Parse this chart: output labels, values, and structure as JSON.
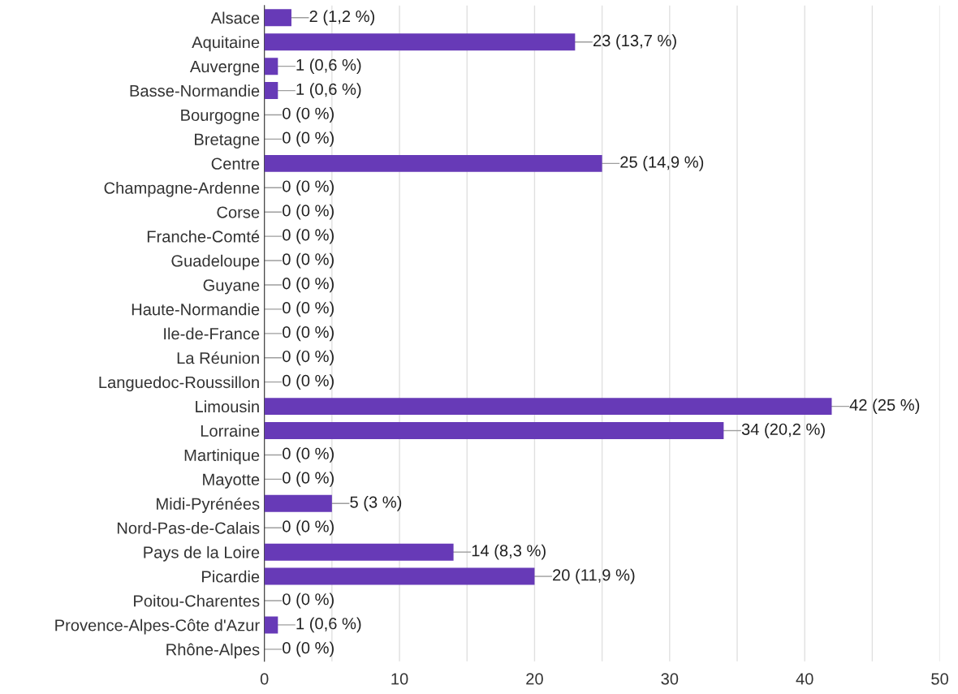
{
  "chart_data": {
    "type": "bar",
    "orientation": "horizontal",
    "categories": [
      "Alsace",
      "Aquitaine",
      "Auvergne",
      "Basse-Normandie",
      "Bourgogne",
      "Bretagne",
      "Centre",
      "Champagne-Ardenne",
      "Corse",
      "Franche-Comté",
      "Guadeloupe",
      "Guyane",
      "Haute-Normandie",
      "Ile-de-France",
      "La Réunion",
      "Languedoc-Roussillon",
      "Limousin",
      "Lorraine",
      "Martinique",
      "Mayotte",
      "Midi-Pyrénées",
      "Nord-Pas-de-Calais",
      "Pays de la Loire",
      "Picardie",
      "Poitou-Charentes",
      "Provence-Alpes-Côte d'Azur",
      "Rhône-Alpes"
    ],
    "values": [
      2,
      23,
      1,
      1,
      0,
      0,
      25,
      0,
      0,
      0,
      0,
      0,
      0,
      0,
      0,
      0,
      42,
      34,
      0,
      0,
      5,
      0,
      14,
      20,
      0,
      1,
      0
    ],
    "value_labels": [
      "2 (1,2 %)",
      "23 (13,7 %)",
      "1 (0,6 %)",
      "1 (0,6 %)",
      "0 (0 %)",
      "0 (0 %)",
      "25 (14,9 %)",
      "0 (0 %)",
      "0 (0 %)",
      "0 (0 %)",
      "0 (0 %)",
      "0 (0 %)",
      "0 (0 %)",
      "0 (0 %)",
      "0 (0 %)",
      "0 (0 %)",
      "42 (25 %)",
      "34 (20,2 %)",
      "0 (0 %)",
      "0 (0 %)",
      "5 (3 %)",
      "0 (0 %)",
      "14 (8,3 %)",
      "20 (11,9 %)",
      "0 (0 %)",
      "1 (0,6 %)",
      "0 (0 %)"
    ],
    "color": "#673ab7",
    "xlim": [
      0,
      50
    ],
    "xticks": [
      0,
      {
        "value": 5,
        "label": null
      },
      10,
      {
        "value": 15,
        "label": null
      },
      20,
      {
        "value": 25,
        "label": null
      },
      30,
      {
        "value": 35,
        "label": null
      },
      40,
      {
        "value": 45,
        "label": null
      },
      50
    ],
    "grid": "x"
  }
}
